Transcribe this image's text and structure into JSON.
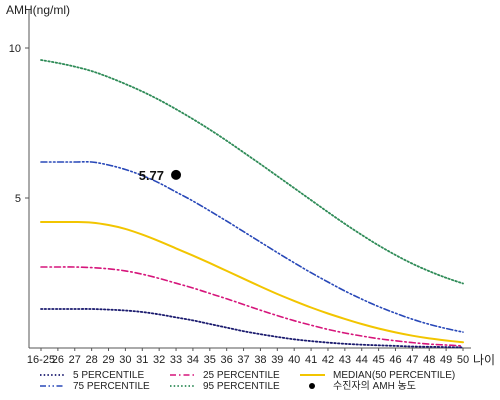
{
  "chart_data": {
    "type": "line",
    "title": "",
    "ylabel": "AMH(ng/ml)",
    "xlabel": "나이",
    "ylim": [
      0,
      11
    ],
    "yticks": [
      5,
      10
    ],
    "grid": false,
    "legend_position": "bottom",
    "categories": [
      "16-25",
      "26",
      "27",
      "28",
      "29",
      "30",
      "31",
      "32",
      "33",
      "34",
      "35",
      "36",
      "37",
      "38",
      "39",
      "40",
      "41",
      "42",
      "43",
      "44",
      "45",
      "46",
      "47",
      "48",
      "49",
      "50"
    ],
    "series": [
      {
        "name": "5 PERCENTILE",
        "color": "#1a1a6e",
        "dash": "dot",
        "values": [
          1.3,
          1.3,
          1.3,
          1.3,
          1.28,
          1.25,
          1.2,
          1.12,
          1.02,
          0.92,
          0.8,
          0.68,
          0.56,
          0.46,
          0.37,
          0.29,
          0.23,
          0.18,
          0.14,
          0.11,
          0.09,
          0.07,
          0.05,
          0.04,
          0.03,
          0.02
        ]
      },
      {
        "name": "25 PERCENTILE",
        "color": "#d6157b",
        "dash": "dashdot",
        "values": [
          2.7,
          2.7,
          2.7,
          2.68,
          2.64,
          2.57,
          2.46,
          2.32,
          2.16,
          2.0,
          1.82,
          1.64,
          1.45,
          1.26,
          1.08,
          0.91,
          0.76,
          0.62,
          0.5,
          0.4,
          0.31,
          0.24,
          0.18,
          0.13,
          0.1,
          0.07
        ]
      },
      {
        "name": "MEDIAN(50 PERCENTILE)",
        "color": "#f2c500",
        "dash": "solid",
        "values": [
          4.2,
          4.2,
          4.2,
          4.18,
          4.1,
          3.97,
          3.78,
          3.56,
          3.32,
          3.08,
          2.83,
          2.57,
          2.31,
          2.05,
          1.8,
          1.57,
          1.35,
          1.15,
          0.97,
          0.8,
          0.65,
          0.52,
          0.41,
          0.32,
          0.25,
          0.19
        ]
      },
      {
        "name": "75 PERCENTILE",
        "color": "#2848b8",
        "dash": "dashdotdot",
        "values": [
          6.2,
          6.2,
          6.2,
          6.2,
          6.1,
          5.95,
          5.75,
          5.5,
          5.2,
          4.9,
          4.57,
          4.23,
          3.88,
          3.53,
          3.18,
          2.84,
          2.51,
          2.2,
          1.9,
          1.63,
          1.38,
          1.16,
          0.96,
          0.79,
          0.65,
          0.53
        ]
      },
      {
        "name": "95 PERCENTILE",
        "color": "#2e8b57",
        "dash": "dot",
        "values": [
          9.6,
          9.5,
          9.38,
          9.23,
          9.03,
          8.8,
          8.55,
          8.27,
          7.96,
          7.63,
          7.28,
          6.91,
          6.52,
          6.13,
          5.73,
          5.33,
          4.93,
          4.53,
          4.14,
          3.77,
          3.42,
          3.1,
          2.81,
          2.56,
          2.34,
          2.15
        ]
      }
    ],
    "markers": [
      {
        "name": "수진자의 AMH 농도",
        "x": "33",
        "y": 5.77,
        "label": "5.77",
        "color": "#000000"
      }
    ]
  }
}
